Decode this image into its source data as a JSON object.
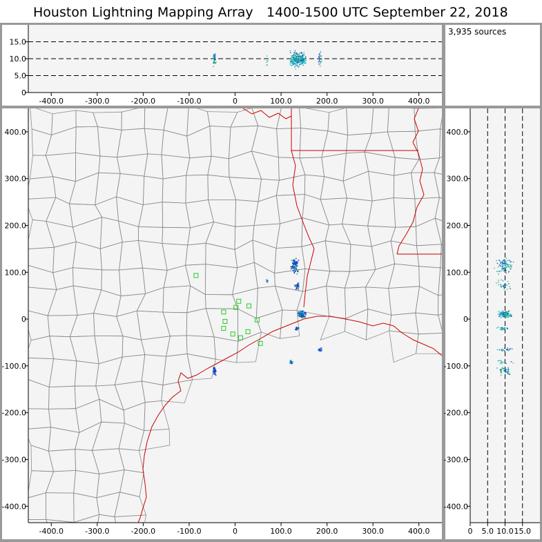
{
  "title": {
    "network": "Houston Lightning Mapping Array",
    "time_window": "1400-1500 UTC",
    "date": "September 22, 2018"
  },
  "colors": {
    "frame": "#999999",
    "plot_bg": "#f4f4f4",
    "county_lines": "#8c8c8c",
    "state_lines": "#cc0000",
    "coastline": "#cc0000",
    "station_markers": "#22cc22",
    "source_colors": [
      "#00b4c8",
      "#00d2a0",
      "#20c040",
      "#1e3cc8",
      "#2a8ad0"
    ]
  },
  "source_count": "3,935 sources",
  "chart_data": [
    {
      "panel": "altitude-vs-east-west",
      "type": "scatter",
      "xlim": [
        -450,
        450
      ],
      "ylim": [
        0,
        20
      ],
      "x_ticks": [
        "-400.0",
        "-300.0",
        "-200.0",
        "-100.0",
        "0",
        "100.0",
        "200.0",
        "300.0",
        "400.0"
      ],
      "y_ticks": [
        "0",
        "5.0",
        "10.0",
        "15.0"
      ],
      "reference_lines_km": [
        5,
        10,
        15
      ]
    },
    {
      "panel": "plan-view-map",
      "type": "scatter",
      "xlim": [
        -450,
        450
      ],
      "ylim": [
        -435,
        450
      ],
      "x_ticks": [
        "-400.0",
        "-300.0",
        "-200.0",
        "-100.0",
        "0",
        "100.0",
        "200.0",
        "300.0",
        "400.0"
      ],
      "y_ticks": [
        "400.0",
        "300.0",
        "200.0",
        "100.0",
        "0",
        "-100.0",
        "-200.0",
        "-300.0",
        "-400.0"
      ],
      "source_clusters": [
        {
          "x": 130,
          "y": 115,
          "spread_x": 10,
          "spread_y": 22,
          "count": 90
        },
        {
          "x": 135,
          "y": 70,
          "spread_x": 6,
          "spread_y": 10,
          "count": 25
        },
        {
          "x": 145,
          "y": 10,
          "spread_x": 12,
          "spread_y": 10,
          "count": 120
        },
        {
          "x": 135,
          "y": -20,
          "spread_x": 6,
          "spread_y": 5,
          "count": 25
        },
        {
          "x": 185,
          "y": -65,
          "spread_x": 5,
          "spread_y": 5,
          "count": 25
        },
        {
          "x": 122,
          "y": -92,
          "spread_x": 5,
          "spread_y": 5,
          "count": 15
        },
        {
          "x": -45,
          "y": -110,
          "spread_x": 5,
          "spread_y": 12,
          "count": 40
        },
        {
          "x": 70,
          "y": 80,
          "spread_x": 2,
          "spread_y": 5,
          "count": 6
        }
      ],
      "stations": [
        {
          "x": -85,
          "y": 93
        },
        {
          "x": -25,
          "y": 15
        },
        {
          "x": 2,
          "y": 25
        },
        {
          "x": 8,
          "y": 38
        },
        {
          "x": 30,
          "y": 28
        },
        {
          "x": 48,
          "y": -2
        },
        {
          "x": -22,
          "y": -5
        },
        {
          "x": -25,
          "y": -20
        },
        {
          "x": -5,
          "y": -32
        },
        {
          "x": 12,
          "y": -40
        },
        {
          "x": 28,
          "y": -27
        },
        {
          "x": 55,
          "y": -52
        }
      ]
    },
    {
      "panel": "north-south-vs-altitude",
      "type": "scatter",
      "xlim": [
        0,
        20
      ],
      "ylim": [
        -435,
        450
      ],
      "x_ticks": [
        "0",
        "5.0",
        "10.0",
        "15.0"
      ],
      "y_ticks": [
        "400.0",
        "300.0",
        "200.0",
        "100.0",
        "0",
        "-100.0",
        "-200.0",
        "-300.0",
        "-400.0"
      ],
      "reference_lines_km": [
        5,
        10,
        15
      ]
    }
  ]
}
